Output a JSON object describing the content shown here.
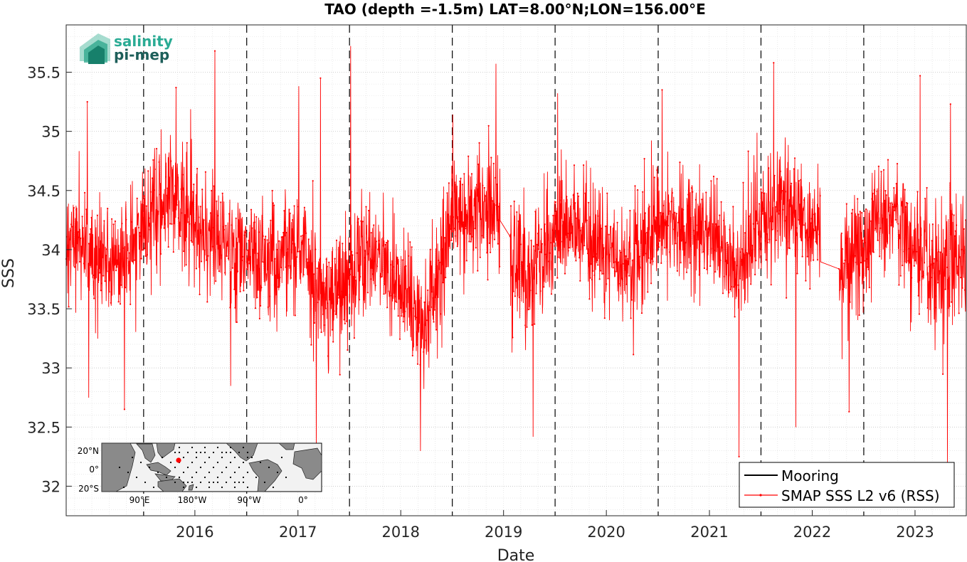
{
  "chart_data": {
    "type": "line",
    "title": "TAO (depth =-1.5m) LAT=8.00°N;LON=156.00°E",
    "xlabel": "Date",
    "ylabel": "SSS",
    "xlim": [
      "2015-04-01",
      "2023-12-31"
    ],
    "ylim": [
      31.75,
      35.9
    ],
    "x_ticks": [
      "2016",
      "2017",
      "2018",
      "2019",
      "2020",
      "2021",
      "2022",
      "2023"
    ],
    "x_tick_dates": [
      "2016-01-01",
      "2017-01-01",
      "2018-01-01",
      "2019-01-01",
      "2020-01-01",
      "2021-01-01",
      "2022-01-01",
      "2023-01-01"
    ],
    "y_ticks": [
      "32",
      "32.5",
      "33",
      "33.5",
      "34",
      "34.5",
      "35",
      "35.5"
    ],
    "year_marker_lines": [
      "2016-01-01",
      "2017-01-01",
      "2018-01-01",
      "2019-01-01",
      "2020-01-01",
      "2021-01-01",
      "2022-01-01",
      "2023-01-01"
    ],
    "grid": true,
    "legend_position": "bottom-right",
    "legend": [
      {
        "label": "Mooring",
        "color": "#000000"
      },
      {
        "label": "SMAP SSS L2 v6 (RSS)",
        "color": "#ff0000"
      }
    ],
    "series": [
      {
        "name": "SMAP SSS L2 v6 (RSS)",
        "color": "#ff0000",
        "trend": [
          [
            "2015-04-01",
            34.05
          ],
          [
            "2015-07-01",
            33.95
          ],
          [
            "2015-10-01",
            33.85
          ],
          [
            "2016-01-01",
            34.2
          ],
          [
            "2016-04-01",
            34.5
          ],
          [
            "2016-07-01",
            34.2
          ],
          [
            "2016-10-01",
            34.05
          ],
          [
            "2017-01-01",
            33.95
          ],
          [
            "2017-04-01",
            33.9
          ],
          [
            "2017-07-01",
            34.0
          ],
          [
            "2017-10-01",
            33.6
          ],
          [
            "2018-01-01",
            33.75
          ],
          [
            "2018-04-01",
            33.95
          ],
          [
            "2018-07-01",
            33.7
          ],
          [
            "2018-10-01",
            33.35
          ],
          [
            "2019-01-01",
            34.3
          ],
          [
            "2019-04-01",
            34.4
          ],
          [
            "2019-06-15",
            34.35
          ],
          [
            "2019-08-01",
            33.9
          ],
          [
            "2019-10-01",
            33.75
          ],
          [
            "2020-01-01",
            34.2
          ],
          [
            "2020-04-01",
            34.1
          ],
          [
            "2020-07-01",
            34.0
          ],
          [
            "2020-10-01",
            33.85
          ],
          [
            "2021-01-01",
            34.2
          ],
          [
            "2021-04-01",
            34.2
          ],
          [
            "2021-07-01",
            34.15
          ],
          [
            "2021-10-01",
            33.8
          ],
          [
            "2022-01-01",
            34.2
          ],
          [
            "2022-04-01",
            34.4
          ],
          [
            "2022-08-01",
            34.15
          ],
          [
            "2022-10-15",
            33.8
          ],
          [
            "2023-01-01",
            34.05
          ],
          [
            "2023-04-01",
            34.3
          ],
          [
            "2023-07-01",
            34.0
          ],
          [
            "2023-10-01",
            33.75
          ],
          [
            "2023-12-31",
            34.0
          ]
        ],
        "gaps": [
          [
            "2019-06-20",
            "2019-07-25"
          ],
          [
            "2022-08-01",
            "2022-10-05"
          ]
        ],
        "noise_sd": 0.32,
        "spikes": [
          [
            "2015-06-15",
            35.25
          ],
          [
            "2015-06-20",
            32.75
          ],
          [
            "2015-10-25",
            32.65
          ],
          [
            "2016-04-25",
            35.37
          ],
          [
            "2016-09-10",
            35.68
          ],
          [
            "2016-11-05",
            32.85
          ],
          [
            "2017-07-05",
            35.38
          ],
          [
            "2017-09-05",
            32.3
          ],
          [
            "2017-09-20",
            35.45
          ],
          [
            "2018-01-05",
            35.72
          ],
          [
            "2018-09-10",
            32.3
          ],
          [
            "2019-06-05",
            35.57
          ],
          [
            "2019-10-15",
            32.42
          ],
          [
            "2020-01-10",
            35.32
          ],
          [
            "2021-01-15",
            35.35
          ],
          [
            "2021-10-15",
            32.25
          ],
          [
            "2022-02-15",
            35.58
          ],
          [
            "2022-05-05",
            32.5
          ],
          [
            "2022-11-10",
            32.63
          ],
          [
            "2023-07-20",
            35.47
          ],
          [
            "2023-10-25",
            32.18
          ],
          [
            "2023-11-05",
            35.23
          ]
        ]
      }
    ]
  },
  "inset_map": {
    "lat_labels": [
      "20°N",
      "0°",
      "20°S"
    ],
    "lon_labels": [
      "90°E",
      "180°W",
      "90°W",
      "0°"
    ],
    "highlight_color": "#ff0000"
  },
  "logo": {
    "line1": "salinity",
    "line2": "pi-mep"
  }
}
